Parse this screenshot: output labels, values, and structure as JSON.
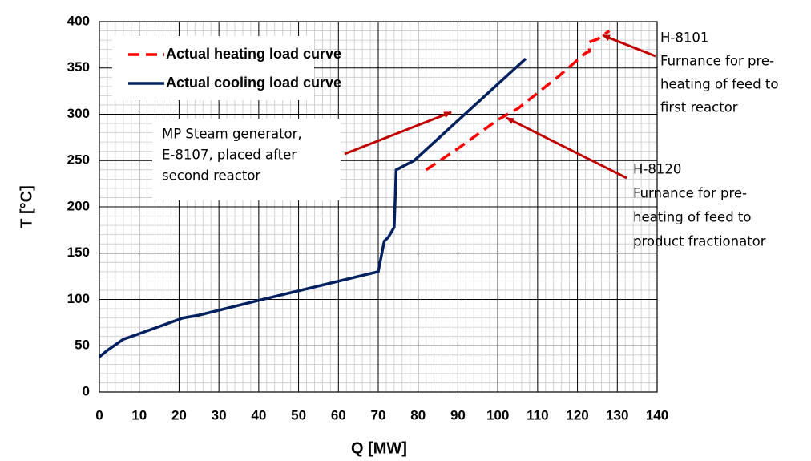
{
  "chart_data": {
    "type": "line",
    "xlabel": "Q [MW]",
    "ylabel": "T [°C]",
    "xlim": [
      0,
      140
    ],
    "ylim": [
      0,
      400
    ],
    "xticks": [
      0,
      10,
      20,
      30,
      40,
      50,
      60,
      70,
      80,
      90,
      100,
      110,
      120,
      130,
      140
    ],
    "yticks": [
      0,
      50,
      100,
      150,
      200,
      250,
      300,
      350,
      400
    ],
    "grid": true,
    "minor_grid": true,
    "legend": "upper left",
    "series": [
      {
        "name": "Actual heating load curve",
        "color": "#ff0000",
        "dashed": true,
        "x": [
          82,
          90,
          100,
          105,
          115,
          122,
          123,
          123,
          125,
          128
        ],
        "values": [
          240,
          263,
          294,
          306,
          340,
          366,
          368,
          378,
          381,
          390
        ]
      },
      {
        "name": "Actual cooling load curve",
        "color": "#002060",
        "dashed": false,
        "x": [
          0,
          2,
          6,
          10,
          21,
          25,
          40,
          70,
          71.5,
          72.5,
          74,
          74.5,
          79,
          107
        ],
        "values": [
          38,
          45,
          57,
          63,
          80,
          83,
          99,
          130,
          163,
          167,
          178,
          240,
          250,
          360
        ]
      }
    ],
    "annotations": [
      {
        "lines": [
          "MP Steam generator,",
          "E-8107, placed after",
          "second reactor"
        ]
      },
      {
        "lines": [
          "H-8101",
          "Furnance for pre-",
          "heating of feed to",
          "first reactor"
        ]
      },
      {
        "lines": [
          "H-8120",
          "Furnance for pre-",
          "heating of feed to",
          "product fractionator"
        ]
      }
    ]
  }
}
